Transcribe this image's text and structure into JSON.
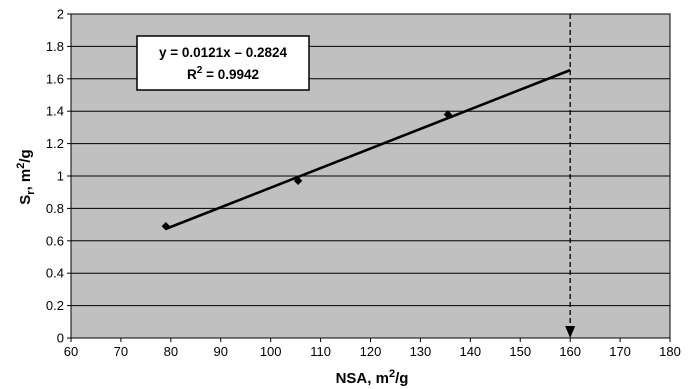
{
  "chart_data": {
    "type": "scatter",
    "xlabel": {
      "base": "NSA, m",
      "sup": "2",
      "rest": "/g"
    },
    "ylabel": {
      "base": "S",
      "sub": "r",
      "mid": ", m",
      "sup": "2",
      "rest": "/g"
    },
    "xlim": [
      60,
      180
    ],
    "ylim": [
      0,
      2
    ],
    "xticks": [
      60,
      70,
      80,
      90,
      100,
      110,
      120,
      130,
      140,
      150,
      160,
      170,
      180
    ],
    "yticks": [
      0,
      0.2,
      0.4,
      0.6,
      0.8,
      1,
      1.2,
      1.4,
      1.6,
      1.8,
      2
    ],
    "ytick_labels": [
      "0",
      "0.2",
      "0.4",
      "0.6",
      "0.8",
      "1",
      "1.2",
      "1.4",
      "1.6",
      "1.8",
      "2"
    ],
    "grid": "horizontal",
    "plot_background": "#c0c0c0",
    "series": [
      {
        "points": [
          {
            "x": 79,
            "y": 0.69
          },
          {
            "x": 105.5,
            "y": 0.97
          },
          {
            "x": 135.5,
            "y": 1.38
          }
        ]
      }
    ],
    "trendline": {
      "slope": 0.0121,
      "intercept": -0.2824,
      "x_range": [
        79,
        160
      ]
    },
    "equation": {
      "line1": "y = 0.0121x – 0.2824",
      "r2_base": "R",
      "r2_sup": "2",
      "r2_value": " = 0.9942"
    },
    "marker_line": {
      "x": 160,
      "style": "dashed-arrow-down"
    }
  }
}
